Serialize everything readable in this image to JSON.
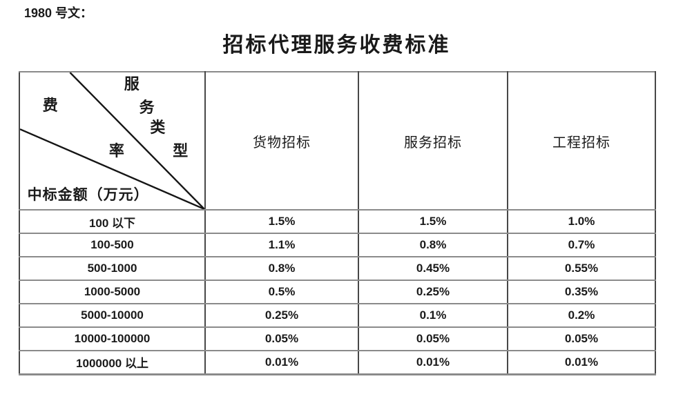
{
  "document": {
    "doc_ref": "1980 号文：",
    "title": "招标代理服务收费标准"
  },
  "table": {
    "corner": {
      "diagonal_axis_chars": [
        "服",
        "务",
        "类",
        "型"
      ],
      "fee_rate_chars": [
        "费",
        "率"
      ],
      "row_axis_label": "中标金额（万元）"
    },
    "column_headers": [
      "货物招标",
      "服务招标",
      "工程招标"
    ],
    "rows": [
      {
        "amount_range": "100 以下",
        "values": [
          "1.5%",
          "1.5%",
          "1.0%"
        ]
      },
      {
        "amount_range": "100-500",
        "values": [
          "1.1%",
          "0.8%",
          "0.7%"
        ]
      },
      {
        "amount_range": "500-1000",
        "values": [
          "0.8%",
          "0.45%",
          "0.55%"
        ]
      },
      {
        "amount_range": "1000-5000",
        "values": [
          "0.5%",
          "0.25%",
          "0.35%"
        ]
      },
      {
        "amount_range": "5000-10000",
        "values": [
          "0.25%",
          "0.1%",
          "0.2%"
        ]
      },
      {
        "amount_range": "10000-100000",
        "values": [
          "0.05%",
          "0.05%",
          "0.05%"
        ]
      },
      {
        "amount_range": "1000000 以上",
        "values": [
          "0.01%",
          "0.01%",
          "0.01%"
        ]
      }
    ]
  },
  "colors": {
    "background": "#ffffff",
    "text": "#1a1a1a",
    "grid_horizontal": "#8a8a8a",
    "grid_vertical": "#474747",
    "diagonal_line": "#151515"
  }
}
